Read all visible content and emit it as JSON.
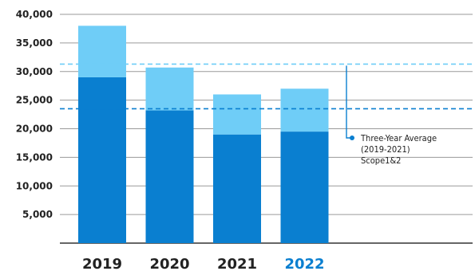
{
  "chart_data": {
    "type": "bar",
    "stacked": true,
    "categories": [
      "2019",
      "2020",
      "2021",
      "2022"
    ],
    "highlight_category": "2022",
    "series": [
      {
        "values": [
          29000,
          23200,
          19000,
          19500
        ],
        "color": "#0a7fd0"
      },
      {
        "values": [
          9000,
          7500,
          7000,
          7500
        ],
        "color": "#6fcdf7"
      }
    ],
    "yticks": [
      5000,
      10000,
      15000,
      20000,
      25000,
      30000,
      35000,
      40000
    ],
    "ytick_labels": [
      "5,000",
      "10,000",
      "15,000",
      "20,000",
      "25,000",
      "30,000",
      "35,000",
      "40,000"
    ],
    "ylim": [
      0,
      40000
    ],
    "grid": true,
    "reference_lines": [
      {
        "value": 31300,
        "color": "#6fcdf7",
        "style": "dashed"
      },
      {
        "value": 23500,
        "color": "#0a7fd0",
        "style": "dashed"
      }
    ],
    "annotation": {
      "lines": [
        "Three-Year Average",
        "(2019-2021)",
        "Scope1&2"
      ],
      "marker_color": "#0a7fd0"
    },
    "category_label_color": "#222222",
    "highlight_label_color": "#0a7fd0"
  }
}
